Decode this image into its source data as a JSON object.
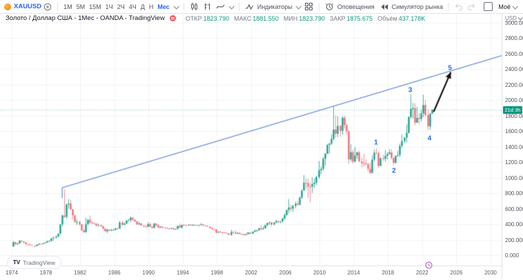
{
  "toolbar": {
    "symbol": "XAUUSD",
    "timeframes": [
      "1М",
      "5М",
      "15М",
      "1Ч",
      "2Ч",
      "4Ч",
      "Д",
      "Н",
      "Мес"
    ],
    "selected_timeframe": "Мес",
    "indicators_label": "Индикаторы",
    "alerts_label": "Оповещения",
    "replay_label": "Симулятор рынка",
    "my_menu_label": "Моё"
  },
  "legend": {
    "title": "Золото / Доллар США - 1Мес - OANDA - TradingView",
    "fields": [
      {
        "key": "open",
        "label": "ОТКР",
        "value": "1823.790"
      },
      {
        "key": "high",
        "label": "МАКС",
        "value": "1881.550"
      },
      {
        "key": "low",
        "label": "МИН",
        "value": "1823.790"
      },
      {
        "key": "close",
        "label": "ЗАКР",
        "value": "1875.675"
      },
      {
        "key": "volume",
        "label": "Объём",
        "value": "437.178K"
      }
    ]
  },
  "price_axis": {
    "unit": "USD",
    "countdown": "21d 3h"
  },
  "watermark": {
    "logo": "TV",
    "brand": "TradingView"
  },
  "colors": {
    "accent_blue": "#2962ff",
    "up": "rgba(8,153,129,0.72)",
    "down": "rgba(242,54,69,0.55)",
    "trendline": "#5d87d8",
    "grid": "rgba(42,46,57,0.06)",
    "dotted_price_line": "rgba(8,153,129,0.55)",
    "arrow": "#111111",
    "badge": "#089981"
  },
  "chart_data": {
    "type": "candlestick",
    "symbol": "XAUUSD",
    "description": "Золото / Доллар США",
    "interval": "1Мес",
    "exchange": "OANDA",
    "last_bar": {
      "open": 1823.79,
      "high": 1881.55,
      "low": 1823.79,
      "close": 1875.675,
      "volume": "437.178K"
    },
    "current_price": 1875.675,
    "ylim": [
      0,
      3120
    ],
    "y_ticks": [
      0,
      200,
      400,
      600,
      800,
      1000,
      1200,
      1400,
      1600,
      1800,
      2000,
      2200,
      2400,
      2600,
      2800,
      3000
    ],
    "x_ticks": [
      1974,
      1978,
      1982,
      1986,
      1990,
      1994,
      1998,
      2002,
      2006,
      2010,
      2014,
      2018,
      2022,
      2026,
      2030
    ],
    "start_year": 1974,
    "candles_per_year": 4,
    "candles": [
      [
        112,
        180,
        110,
        168
      ],
      [
        168,
        172,
        128,
        144
      ],
      [
        144,
        160,
        130,
        151
      ],
      [
        151,
        195,
        148,
        187
      ],
      [
        187,
        188,
        163,
        178
      ],
      [
        178,
        179,
        155,
        164
      ],
      [
        164,
        168,
        139,
        141
      ],
      [
        141,
        145,
        128,
        140
      ],
      [
        140,
        141,
        125,
        129
      ],
      [
        129,
        132,
        120,
        123
      ],
      [
        123,
        124,
        103,
        116
      ],
      [
        116,
        140,
        114,
        134
      ],
      [
        134,
        150,
        130,
        148
      ],
      [
        148,
        149,
        139,
        143
      ],
      [
        143,
        156,
        140,
        154
      ],
      [
        154,
        168,
        152,
        165
      ],
      [
        165,
        184,
        160,
        181
      ],
      [
        181,
        190,
        170,
        183
      ],
      [
        183,
        220,
        178,
        217
      ],
      [
        217,
        243,
        190,
        226
      ],
      [
        226,
        254,
        216,
        240
      ],
      [
        240,
        280,
        232,
        277
      ],
      [
        277,
        399,
        270,
        397
      ],
      [
        397,
        524,
        372,
        512
      ],
      [
        512,
        850,
        481,
        494
      ],
      [
        494,
        666,
        474,
        653
      ],
      [
        653,
        725,
        600,
        666
      ],
      [
        666,
        710,
        589,
        590
      ],
      [
        590,
        600,
        460,
        514
      ],
      [
        514,
        520,
        420,
        426
      ],
      [
        426,
        465,
        390,
        428
      ],
      [
        428,
        445,
        380,
        398
      ],
      [
        398,
        400,
        310,
        320
      ],
      [
        320,
        340,
        290,
        296
      ],
      [
        296,
        481,
        292,
        397
      ],
      [
        397,
        465,
        390,
        457
      ],
      [
        457,
        511,
        405,
        420
      ],
      [
        420,
        440,
        400,
        413
      ],
      [
        413,
        425,
        395,
        405
      ],
      [
        405,
        415,
        370,
        382
      ],
      [
        382,
        408,
        370,
        388
      ],
      [
        388,
        395,
        360,
        373
      ],
      [
        373,
        380,
        335,
        343
      ],
      [
        343,
        350,
        303,
        308
      ],
      [
        308,
        340,
        284,
        329
      ],
      [
        329,
        335,
        308,
        317
      ],
      [
        317,
        340,
        310,
        326
      ],
      [
        326,
        340,
        318,
        327
      ],
      [
        327,
        355,
        320,
        344
      ],
      [
        344,
        355,
        335,
        343
      ],
      [
        343,
        440,
        340,
        423
      ],
      [
        423,
        442,
        380,
        391
      ],
      [
        391,
        420,
        388,
        408
      ],
      [
        408,
        455,
        400,
        447
      ],
      [
        447,
        470,
        440,
        453
      ],
      [
        453,
        499,
        425,
        484
      ],
      [
        484,
        487,
        440,
        457
      ],
      [
        457,
        465,
        425,
        437
      ],
      [
        437,
        445,
        390,
        397
      ],
      [
        397,
        435,
        395,
        410
      ],
      [
        410,
        415,
        380,
        383
      ],
      [
        383,
        390,
        358,
        374
      ],
      [
        374,
        380,
        356,
        366
      ],
      [
        366,
        420,
        362,
        401
      ],
      [
        401,
        424,
        360,
        368
      ],
      [
        368,
        375,
        345,
        352
      ],
      [
        352,
        415,
        348,
        408
      ],
      [
        408,
        410,
        370,
        386
      ],
      [
        386,
        400,
        350,
        355
      ],
      [
        355,
        375,
        352,
        368
      ],
      [
        368,
        370,
        342,
        355
      ],
      [
        355,
        362,
        343,
        353
      ],
      [
        353,
        360,
        340,
        344
      ],
      [
        344,
        350,
        330,
        343
      ],
      [
        343,
        350,
        335,
        349
      ],
      [
        349,
        352,
        328,
        333
      ],
      [
        333,
        340,
        326,
        337
      ],
      [
        337,
        380,
        335,
        378
      ],
      [
        378,
        406,
        350,
        355
      ],
      [
        355,
        392,
        343,
        390
      ],
      [
        390,
        395,
        376,
        389
      ],
      [
        389,
        392,
        374,
        385
      ],
      [
        385,
        398,
        380,
        394
      ],
      [
        394,
        397,
        378,
        384
      ],
      [
        384,
        398,
        376,
        392
      ],
      [
        392,
        395,
        380,
        387
      ],
      [
        387,
        390,
        378,
        384
      ],
      [
        384,
        392,
        380,
        387
      ],
      [
        387,
        415,
        384,
        396
      ],
      [
        396,
        400,
        378,
        382
      ],
      [
        382,
        388,
        376,
        379
      ],
      [
        379,
        382,
        365,
        369
      ],
      [
        369,
        370,
        345,
        351
      ],
      [
        351,
        358,
        332,
        334
      ],
      [
        334,
        340,
        320,
        332
      ],
      [
        332,
        335,
        283,
        290
      ],
      [
        290,
        310,
        288,
        301
      ],
      [
        301,
        315,
        292,
        296
      ],
      [
        296,
        300,
        273,
        293
      ],
      [
        293,
        300,
        286,
        288
      ],
      [
        288,
        292,
        275,
        280
      ],
      [
        280,
        284,
        258,
        261
      ],
      [
        261,
        329,
        252,
        299
      ],
      [
        299,
        310,
        282,
        290
      ],
      [
        290,
        318,
        272,
        276
      ],
      [
        276,
        294,
        272,
        288
      ],
      [
        288,
        292,
        270,
        273
      ],
      [
        273,
        280,
        263,
        272
      ],
      [
        272,
        275,
        255,
        258
      ],
      [
        258,
        274,
        256,
        270
      ],
      [
        270,
        295,
        264,
        293
      ],
      [
        293,
        296,
        271,
        277
      ],
      [
        277,
        308,
        274,
        301
      ],
      [
        301,
        330,
        296,
        318
      ],
      [
        318,
        330,
        300,
        323
      ],
      [
        323,
        352,
        316,
        348
      ],
      [
        348,
        390,
        320,
        334
      ],
      [
        334,
        375,
        330,
        346
      ],
      [
        346,
        394,
        342,
        388
      ],
      [
        388,
        418,
        370,
        416
      ],
      [
        416,
        432,
        388,
        423
      ],
      [
        423,
        428,
        372,
        395
      ],
      [
        395,
        425,
        385,
        420
      ],
      [
        420,
        458,
        411,
        438
      ],
      [
        438,
        446,
        410,
        428
      ],
      [
        428,
        442,
        412,
        437
      ],
      [
        437,
        480,
        418,
        473
      ],
      [
        473,
        540,
        456,
        517
      ],
      [
        517,
        584,
        510,
        582
      ],
      [
        582,
        725,
        542,
        614
      ],
      [
        614,
        650,
        560,
        599
      ],
      [
        599,
        650,
        558,
        636
      ],
      [
        636,
        692,
        602,
        663
      ],
      [
        663,
        698,
        640,
        651
      ],
      [
        651,
        755,
        642,
        743
      ],
      [
        743,
        845,
        725,
        834
      ],
      [
        834,
        1033,
        830,
        933
      ],
      [
        933,
        990,
        850,
        930
      ],
      [
        930,
        986,
        736,
        884
      ],
      [
        884,
        930,
        681,
        882
      ],
      [
        882,
        1007,
        800,
        916
      ],
      [
        916,
        990,
        864,
        934
      ],
      [
        934,
        1025,
        905,
        1008
      ],
      [
        1008,
        1215,
        985,
        1096
      ],
      [
        1096,
        1145,
        1044,
        1113
      ],
      [
        1113,
        1265,
        1084,
        1244
      ],
      [
        1244,
        1320,
        1155,
        1307
      ],
      [
        1307,
        1432,
        1305,
        1421
      ],
      [
        1421,
        1447,
        1308,
        1439
      ],
      [
        1439,
        1560,
        1420,
        1500
      ],
      [
        1500,
        1920,
        1478,
        1620
      ],
      [
        1620,
        1804,
        1520,
        1566
      ],
      [
        1566,
        1790,
        1522,
        1668
      ],
      [
        1668,
        1680,
        1527,
        1604
      ],
      [
        1604,
        1796,
        1555,
        1772
      ],
      [
        1772,
        1798,
        1630,
        1675
      ],
      [
        1675,
        1697,
        1555,
        1597
      ],
      [
        1597,
        1610,
        1180,
        1235
      ],
      [
        1235,
        1434,
        1207,
        1329
      ],
      [
        1329,
        1362,
        1182,
        1205
      ],
      [
        1205,
        1392,
        1202,
        1284
      ],
      [
        1284,
        1335,
        1240,
        1327
      ],
      [
        1327,
        1346,
        1206,
        1208
      ],
      [
        1208,
        1256,
        1132,
        1184
      ],
      [
        1184,
        1308,
        1142,
        1183
      ],
      [
        1183,
        1232,
        1162,
        1171
      ],
      [
        1171,
        1192,
        1080,
        1114
      ],
      [
        1114,
        1192,
        1046,
        1060
      ],
      [
        1060,
        1285,
        1060,
        1233
      ],
      [
        1233,
        1362,
        1208,
        1321
      ],
      [
        1321,
        1375,
        1302,
        1316
      ],
      [
        1316,
        1340,
        1124,
        1151
      ],
      [
        1151,
        1264,
        1146,
        1249
      ],
      [
        1249,
        1296,
        1214,
        1242
      ],
      [
        1242,
        1357,
        1205,
        1280
      ],
      [
        1280,
        1330,
        1236,
        1303
      ],
      [
        1303,
        1366,
        1302,
        1325
      ],
      [
        1325,
        1365,
        1238,
        1253
      ],
      [
        1253,
        1266,
        1160,
        1192
      ],
      [
        1192,
        1285,
        1180,
        1282
      ],
      [
        1282,
        1346,
        1266,
        1292
      ],
      [
        1292,
        1439,
        1265,
        1410
      ],
      [
        1410,
        1557,
        1383,
        1472
      ],
      [
        1472,
        1520,
        1445,
        1517
      ],
      [
        1517,
        1689,
        1451,
        1577
      ],
      [
        1577,
        1789,
        1568,
        1781
      ],
      [
        1781,
        2075,
        1757,
        1886
      ],
      [
        1886,
        1965,
        1764,
        1898
      ],
      [
        1898,
        1959,
        1676,
        1708
      ],
      [
        1708,
        1916,
        1706,
        1770
      ],
      [
        1770,
        1834,
        1687,
        1757
      ],
      [
        1757,
        1877,
        1722,
        1829
      ],
      [
        1829,
        2070,
        1780,
        1937
      ],
      [
        1937,
        1998,
        1786,
        1807
      ],
      [
        1807,
        1879,
        1615,
        1661
      ],
      [
        1661,
        1833,
        1617,
        1824
      ],
      [
        1823.79,
        1881.55,
        1823.79,
        1875.675
      ]
    ],
    "trendline": {
      "anchor_year": 1979.9,
      "anchor_price": 870,
      "anchor_tick_low_price": 735,
      "end_year": 2033.9,
      "end_price": 2660
    },
    "wave_labels": [
      {
        "text": "1",
        "year": 2016.6,
        "price": 1450
      },
      {
        "text": "2",
        "year": 2018.7,
        "price": 1085
      },
      {
        "text": "3",
        "year": 2020.6,
        "price": 2126
      },
      {
        "text": "4",
        "year": 2022.85,
        "price": 1500
      },
      {
        "text": "5",
        "year": 2025.25,
        "price": 2410
      }
    ],
    "arrow": {
      "from_year": 2023.35,
      "from_price": 1850,
      "to_year": 2025.35,
      "to_price": 2360
    },
    "event_marker_year": 2022.8,
    "grid": true,
    "legend_position": "top-left"
  }
}
